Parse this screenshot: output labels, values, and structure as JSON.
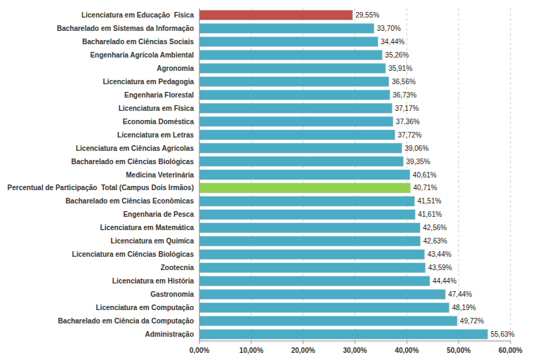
{
  "chart_data": {
    "type": "bar",
    "orientation": "horizontal",
    "categories": [
      "Administração",
      "Bacharelado em Ciência da Computação",
      "Licenciatura em Computação",
      "Gastronomia",
      "Licenciatura em História",
      "Zootecnia",
      "Licenciatura em Ciências Biológicas",
      "Licenciatura em Química",
      "Licenciatura em Matemática",
      "Engenharia de Pesca",
      "Bacharelado em Ciências Econômicas",
      "Percentual de Participação  Total (Campus Dois Irmãos)",
      "Medicina Veterinária",
      "Bacharelado em Ciências Biológicas",
      "Licenciatura em Ciências Agrícolas",
      "Licenciatura em Letras",
      "Economia Doméstica",
      "Licenciatura em Física",
      "Engenharia Florestal",
      "Licenciatura em Pedagogia",
      "Agronomia",
      "Engenharia Agrícola Ambiental",
      "Bacharelado em Ciências Sociais",
      "Bacharelado em Sistemas da Informação",
      "Licenciatura em Educação  Física"
    ],
    "values": [
      55.63,
      49.72,
      48.19,
      47.44,
      44.44,
      43.59,
      43.44,
      42.63,
      42.56,
      41.61,
      41.51,
      40.71,
      40.61,
      39.35,
      39.06,
      37.72,
      37.36,
      37.17,
      36.73,
      36.56,
      35.91,
      35.26,
      34.44,
      33.7,
      29.55
    ],
    "value_labels": [
      "55,63%",
      "49,72%",
      "48,19%",
      "47,44%",
      "44,44%",
      "43,59%",
      "43,44%",
      "42,63%",
      "42,56%",
      "41,61%",
      "41,51%",
      "40,71%",
      "40,61%",
      "39,35%",
      "39,06%",
      "37,72%",
      "37,36%",
      "37,17%",
      "36,73%",
      "36,56%",
      "35,91%",
      "35,26%",
      "34,44%",
      "33,70%",
      "29,55%"
    ],
    "colors": [
      "#4bacc6",
      "#4bacc6",
      "#4bacc6",
      "#4bacc6",
      "#4bacc6",
      "#4bacc6",
      "#4bacc6",
      "#4bacc6",
      "#4bacc6",
      "#4bacc6",
      "#4bacc6",
      "#92d050",
      "#4bacc6",
      "#4bacc6",
      "#4bacc6",
      "#4bacc6",
      "#4bacc6",
      "#4bacc6",
      "#4bacc6",
      "#4bacc6",
      "#4bacc6",
      "#4bacc6",
      "#4bacc6",
      "#4bacc6",
      "#c0504d"
    ],
    "xlim": [
      0,
      60
    ],
    "xticks": [
      {
        "value": 0,
        "label": "0,00%"
      },
      {
        "value": 10,
        "label": "10,00%"
      },
      {
        "value": 20,
        "label": "20,00%"
      },
      {
        "value": 30,
        "label": "30,00%"
      },
      {
        "value": 40,
        "label": "40,00%"
      },
      {
        "value": 50,
        "label": "50,00%"
      },
      {
        "value": 60,
        "label": "60,00%"
      }
    ],
    "grid": true,
    "data_labels": true
  }
}
